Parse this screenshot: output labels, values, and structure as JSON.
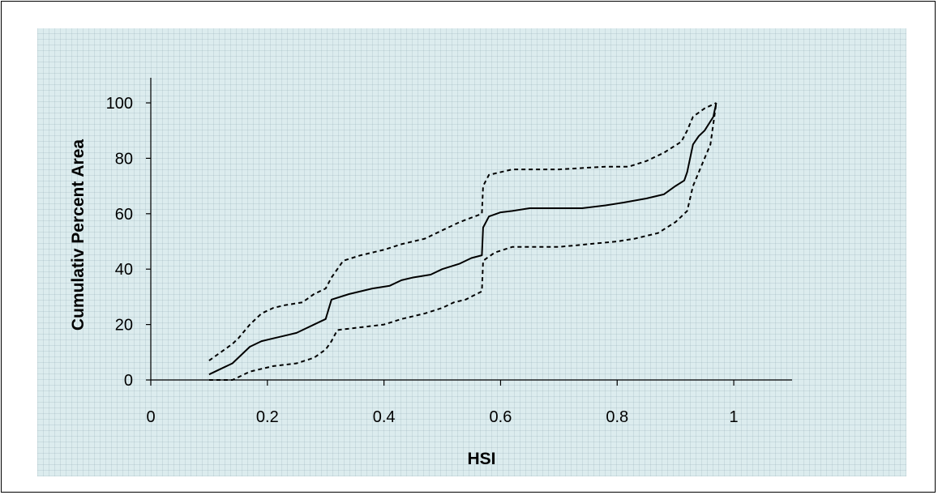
{
  "chart_data": {
    "type": "line",
    "title": "",
    "xlabel": "HSI",
    "ylabel": "Cumulativ Percent Area",
    "xlim": [
      0,
      1.1
    ],
    "ylim": [
      0,
      100
    ],
    "x_ticks": [
      "0",
      "0.2",
      "0.4",
      "0.6",
      "0.8",
      "1"
    ],
    "y_ticks": [
      "0",
      "20",
      "40",
      "60",
      "80",
      "100"
    ],
    "grid": false,
    "legend": "none",
    "series": [
      {
        "style": "solid",
        "points": [
          [
            0.1,
            2
          ],
          [
            0.12,
            4
          ],
          [
            0.14,
            6
          ],
          [
            0.15,
            8
          ],
          [
            0.17,
            12
          ],
          [
            0.19,
            14
          ],
          [
            0.21,
            15
          ],
          [
            0.23,
            16
          ],
          [
            0.25,
            17
          ],
          [
            0.27,
            19
          ],
          [
            0.29,
            21
          ],
          [
            0.3,
            22
          ],
          [
            0.31,
            29
          ],
          [
            0.34,
            31
          ],
          [
            0.38,
            33
          ],
          [
            0.41,
            34
          ],
          [
            0.43,
            36
          ],
          [
            0.45,
            37
          ],
          [
            0.48,
            38
          ],
          [
            0.5,
            40
          ],
          [
            0.53,
            42
          ],
          [
            0.55,
            44
          ],
          [
            0.568,
            45
          ],
          [
            0.57,
            55
          ],
          [
            0.58,
            59
          ],
          [
            0.6,
            60.5
          ],
          [
            0.62,
            61
          ],
          [
            0.65,
            62
          ],
          [
            0.7,
            62
          ],
          [
            0.74,
            62
          ],
          [
            0.78,
            63
          ],
          [
            0.81,
            64
          ],
          [
            0.85,
            65.5
          ],
          [
            0.88,
            67
          ],
          [
            0.9,
            70
          ],
          [
            0.915,
            72
          ],
          [
            0.92,
            75
          ],
          [
            0.925,
            80
          ],
          [
            0.93,
            85
          ],
          [
            0.94,
            88
          ],
          [
            0.95,
            90
          ],
          [
            0.965,
            95
          ],
          [
            0.97,
            100
          ]
        ]
      },
      {
        "style": "dashed",
        "points": [
          [
            0.1,
            7
          ],
          [
            0.12,
            10
          ],
          [
            0.14,
            13
          ],
          [
            0.15,
            15
          ],
          [
            0.17,
            20
          ],
          [
            0.19,
            24
          ],
          [
            0.21,
            26
          ],
          [
            0.23,
            27
          ],
          [
            0.26,
            28
          ],
          [
            0.28,
            31
          ],
          [
            0.3,
            33
          ],
          [
            0.31,
            37
          ],
          [
            0.33,
            43
          ],
          [
            0.36,
            45
          ],
          [
            0.4,
            47
          ],
          [
            0.43,
            49
          ],
          [
            0.47,
            51
          ],
          [
            0.5,
            54
          ],
          [
            0.53,
            57
          ],
          [
            0.568,
            60
          ],
          [
            0.57,
            70
          ],
          [
            0.58,
            74
          ],
          [
            0.62,
            76
          ],
          [
            0.7,
            76
          ],
          [
            0.78,
            77
          ],
          [
            0.82,
            77
          ],
          [
            0.85,
            79
          ],
          [
            0.88,
            82
          ],
          [
            0.91,
            86
          ],
          [
            0.92,
            90
          ],
          [
            0.93,
            95
          ],
          [
            0.95,
            98
          ],
          [
            0.97,
            100
          ]
        ]
      },
      {
        "style": "dashed",
        "points": [
          [
            0.1,
            0
          ],
          [
            0.14,
            0
          ],
          [
            0.15,
            1
          ],
          [
            0.17,
            3
          ],
          [
            0.19,
            4
          ],
          [
            0.21,
            5
          ],
          [
            0.25,
            6
          ],
          [
            0.28,
            8
          ],
          [
            0.3,
            11
          ],
          [
            0.31,
            14
          ],
          [
            0.32,
            18
          ],
          [
            0.36,
            19
          ],
          [
            0.4,
            20
          ],
          [
            0.43,
            22
          ],
          [
            0.47,
            24
          ],
          [
            0.5,
            26
          ],
          [
            0.52,
            28
          ],
          [
            0.54,
            29
          ],
          [
            0.568,
            32
          ],
          [
            0.57,
            43
          ],
          [
            0.59,
            46
          ],
          [
            0.62,
            48
          ],
          [
            0.7,
            48
          ],
          [
            0.75,
            49
          ],
          [
            0.8,
            50
          ],
          [
            0.83,
            51
          ],
          [
            0.87,
            53
          ],
          [
            0.9,
            57
          ],
          [
            0.92,
            61
          ],
          [
            0.93,
            70
          ],
          [
            0.95,
            80
          ],
          [
            0.96,
            85
          ],
          [
            0.97,
            100
          ]
        ]
      }
    ]
  }
}
